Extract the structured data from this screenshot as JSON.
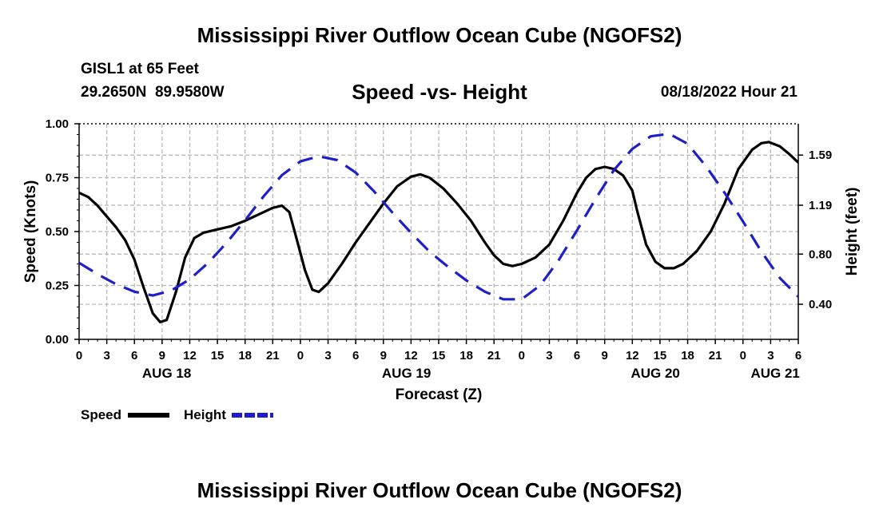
{
  "header": {
    "title": "Mississippi River Outflow Ocean Cube (NGOFS2)",
    "station": "GISL1 at 65 Feet",
    "coords": "29.2650N  89.9580W",
    "timestamp": "08/18/2022 Hour 21"
  },
  "footer": {
    "title": "Mississippi River Outflow Ocean Cube (NGOFS2)"
  },
  "legend": {
    "speed_label": "Speed",
    "height_label": "Height"
  },
  "colors": {
    "speed": "#000000",
    "height": "#1f1fc8",
    "grid": "#b4b4b4"
  },
  "chart_data": {
    "type": "line",
    "title": "Speed -vs- Height",
    "xlabel": "Forecast (Z)",
    "ylabel_left": "Speed (Knots)",
    "ylabel_right": "Height (feet)",
    "x_unit": "hours since AUG 18 00Z",
    "xlim": [
      0,
      78
    ],
    "ylim_left": [
      0,
      1
    ],
    "ylim_right": [
      0.12,
      1.84
    ],
    "x_ticks": [
      0,
      3,
      6,
      9,
      12,
      15,
      18,
      21,
      24,
      27,
      30,
      33,
      36,
      39,
      42,
      45,
      48,
      51,
      54,
      57,
      60,
      63,
      66,
      69,
      72,
      75,
      78
    ],
    "x_tick_labels": [
      "0",
      "3",
      "6",
      "9",
      "12",
      "15",
      "18",
      "21",
      "0",
      "3",
      "6",
      "9",
      "12",
      "15",
      "18",
      "21",
      "0",
      "3",
      "6",
      "9",
      "12",
      "15",
      "18",
      "21",
      "0",
      "3",
      "6"
    ],
    "day_labels": [
      {
        "label": "AUG 18",
        "x": 9.5
      },
      {
        "label": "AUG 19",
        "x": 35.5
      },
      {
        "label": "AUG 20",
        "x": 62.5
      },
      {
        "label": "AUG 21",
        "x": 75.5
      }
    ],
    "y_left_ticks": [
      0,
      0.25,
      0.5,
      0.75,
      1.0
    ],
    "y_left_tick_labels": [
      "0.00",
      "0.25",
      "0.50",
      "0.75",
      "1.00"
    ],
    "y_right_ticks": [
      0.4,
      0.8,
      1.19,
      1.59
    ],
    "y_right_tick_labels": [
      "0.40",
      "0.80",
      "1.19",
      "1.59"
    ],
    "grid": true,
    "series": [
      {
        "name": "Speed",
        "axis": "left",
        "style": "solid",
        "points": [
          [
            0,
            0.68
          ],
          [
            1,
            0.66
          ],
          [
            2,
            0.62
          ],
          [
            3,
            0.57
          ],
          [
            4,
            0.52
          ],
          [
            5,
            0.46
          ],
          [
            6,
            0.37
          ],
          [
            7,
            0.24
          ],
          [
            8,
            0.12
          ],
          [
            8.8,
            0.08
          ],
          [
            9.5,
            0.09
          ],
          [
            10.5,
            0.22
          ],
          [
            11.5,
            0.38
          ],
          [
            12.5,
            0.47
          ],
          [
            13.5,
            0.495
          ],
          [
            15,
            0.51
          ],
          [
            16.5,
            0.525
          ],
          [
            18,
            0.55
          ],
          [
            19.5,
            0.58
          ],
          [
            21,
            0.61
          ],
          [
            22,
            0.62
          ],
          [
            22.8,
            0.59
          ],
          [
            23.5,
            0.48
          ],
          [
            24.5,
            0.32
          ],
          [
            25.3,
            0.23
          ],
          [
            26,
            0.22
          ],
          [
            27,
            0.26
          ],
          [
            28.5,
            0.35
          ],
          [
            30,
            0.45
          ],
          [
            31.5,
            0.54
          ],
          [
            33,
            0.63
          ],
          [
            34.5,
            0.71
          ],
          [
            36,
            0.755
          ],
          [
            37,
            0.765
          ],
          [
            38,
            0.75
          ],
          [
            39.5,
            0.7
          ],
          [
            41,
            0.63
          ],
          [
            42.5,
            0.55
          ],
          [
            44,
            0.45
          ],
          [
            45,
            0.39
          ],
          [
            46,
            0.35
          ],
          [
            47,
            0.34
          ],
          [
            48,
            0.35
          ],
          [
            49.5,
            0.38
          ],
          [
            51,
            0.44
          ],
          [
            52.5,
            0.55
          ],
          [
            54,
            0.68
          ],
          [
            55,
            0.75
          ],
          [
            56,
            0.79
          ],
          [
            57,
            0.8
          ],
          [
            58,
            0.79
          ],
          [
            59,
            0.76
          ],
          [
            60,
            0.69
          ],
          [
            60.5,
            0.6
          ],
          [
            61.5,
            0.44
          ],
          [
            62.5,
            0.36
          ],
          [
            63.5,
            0.33
          ],
          [
            64.5,
            0.33
          ],
          [
            65.5,
            0.35
          ],
          [
            67,
            0.41
          ],
          [
            68.5,
            0.5
          ],
          [
            70,
            0.63
          ],
          [
            71.5,
            0.79
          ],
          [
            73,
            0.88
          ],
          [
            74,
            0.91
          ],
          [
            74.8,
            0.915
          ],
          [
            76,
            0.895
          ],
          [
            77,
            0.86
          ],
          [
            78,
            0.82
          ],
          [
            79,
            0.76
          ],
          [
            80,
            0.68
          ],
          [
            81,
            0.59
          ]
        ]
      },
      {
        "name": "Height",
        "axis": "right",
        "style": "dashed",
        "points": [
          [
            0,
            0.73
          ],
          [
            2,
            0.64
          ],
          [
            4,
            0.56
          ],
          [
            6,
            0.5
          ],
          [
            8,
            0.47
          ],
          [
            10,
            0.51
          ],
          [
            12,
            0.6
          ],
          [
            14,
            0.73
          ],
          [
            16,
            0.89
          ],
          [
            18,
            1.07
          ],
          [
            20,
            1.26
          ],
          [
            22,
            1.43
          ],
          [
            24,
            1.54
          ],
          [
            26,
            1.58
          ],
          [
            28,
            1.55
          ],
          [
            30,
            1.45
          ],
          [
            32,
            1.3
          ],
          [
            34,
            1.13
          ],
          [
            36,
            0.97
          ],
          [
            38,
            0.82
          ],
          [
            40,
            0.7
          ],
          [
            42,
            0.59
          ],
          [
            44,
            0.5
          ],
          [
            46,
            0.44
          ],
          [
            48,
            0.44
          ],
          [
            50,
            0.55
          ],
          [
            52,
            0.75
          ],
          [
            54,
            0.99
          ],
          [
            56,
            1.24
          ],
          [
            58,
            1.47
          ],
          [
            60,
            1.64
          ],
          [
            62,
            1.74
          ],
          [
            64,
            1.76
          ],
          [
            66,
            1.68
          ],
          [
            68,
            1.5
          ],
          [
            70,
            1.29
          ],
          [
            72,
            1.06
          ],
          [
            74,
            0.82
          ],
          [
            76,
            0.61
          ],
          [
            78,
            0.46
          ],
          [
            81,
            0.38
          ]
        ]
      }
    ]
  }
}
